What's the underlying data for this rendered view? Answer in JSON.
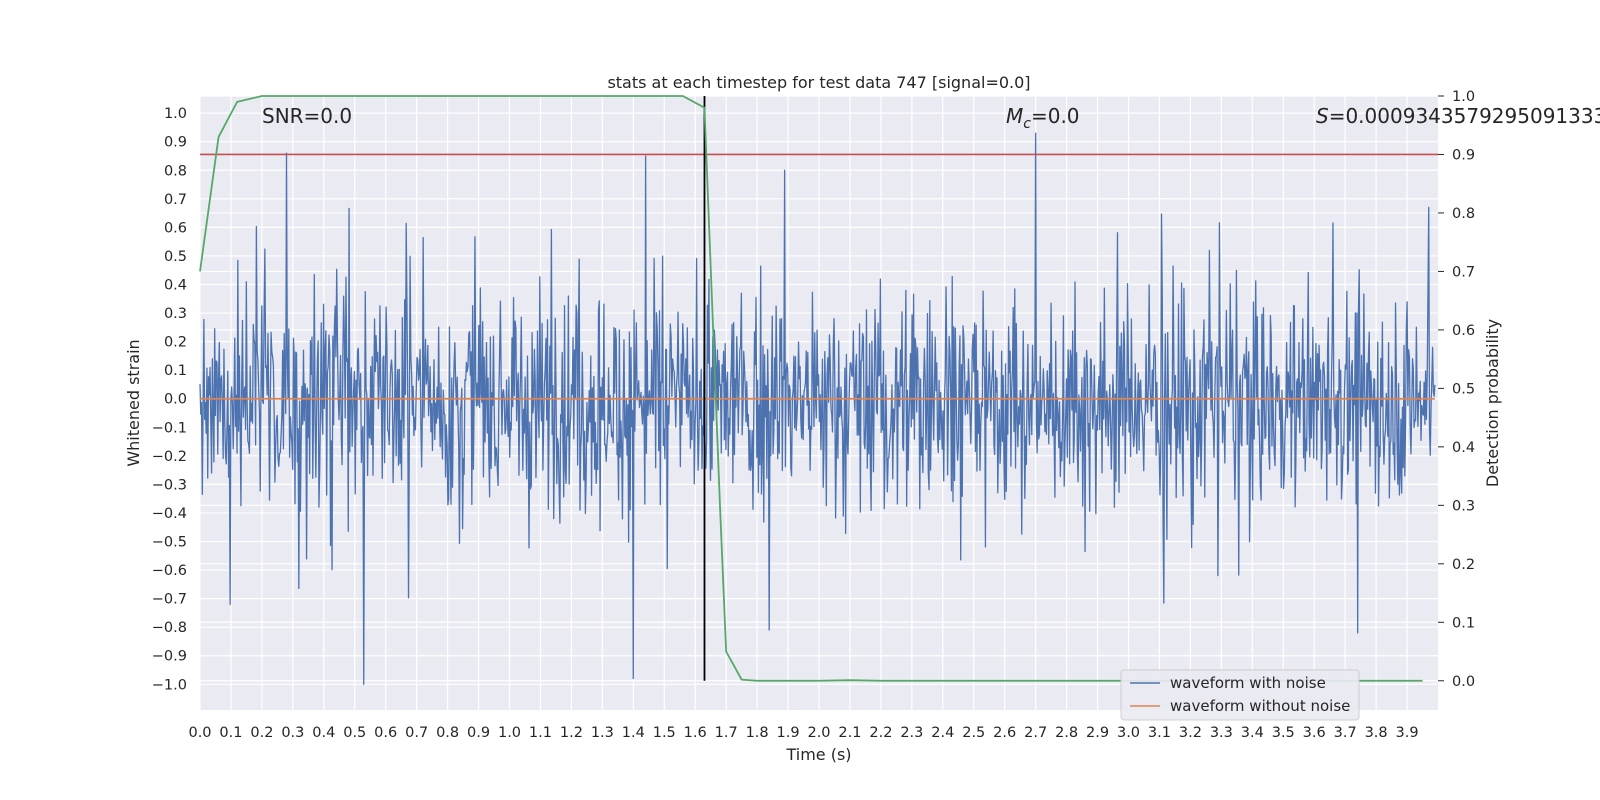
{
  "chart_data": {
    "type": "line",
    "title": "stats at each timestep for test data 747 [signal=0.0]",
    "xlabel": "Time (s)",
    "ylabel": "Whitened strain",
    "y2label": "Detection probability",
    "xlim": [
      0.0,
      4.0
    ],
    "ylim": [
      -1.09,
      1.06
    ],
    "y2lim": [
      -0.05,
      1.0
    ],
    "xticks": [
      "0.0",
      "0.1",
      "0.2",
      "0.3",
      "0.4",
      "0.5",
      "0.6",
      "0.7",
      "0.8",
      "0.9",
      "1.0",
      "1.1",
      "1.2",
      "1.3",
      "1.4",
      "1.5",
      "1.6",
      "1.7",
      "1.8",
      "1.9",
      "2.0",
      "2.1",
      "2.2",
      "2.3",
      "2.4",
      "2.5",
      "2.6",
      "2.7",
      "2.8",
      "2.9",
      "3.0",
      "3.1",
      "3.2",
      "3.3",
      "3.4",
      "3.5",
      "3.6",
      "3.7",
      "3.8",
      "3.9"
    ],
    "yticks": [
      "1.0",
      "0.9",
      "0.8",
      "0.7",
      "0.6",
      "0.5",
      "0.4",
      "0.3",
      "0.2",
      "0.1",
      "0.0",
      "−0.1",
      "−0.2",
      "−0.3",
      "−0.4",
      "−0.5",
      "−0.6",
      "−0.7",
      "−0.8",
      "−0.9",
      "−1.0"
    ],
    "y2ticks": [
      "1.0",
      "0.9",
      "0.8",
      "0.7",
      "0.6",
      "0.5",
      "0.4",
      "0.3",
      "0.2",
      "0.1",
      "0.0"
    ],
    "annotations": {
      "snr": "SNR=0.0",
      "mc_symbol": "M",
      "mc_sub": "c",
      "mc_value": "=0.0",
      "s_symbol": "S",
      "s_value": "=0.0009343579295091333"
    },
    "threshold": 0.9,
    "detection_time": 1.63,
    "noise_series": {
      "name": "waveform with noise",
      "sample_count": 1600,
      "peaks": [
        {
          "t": 0.28,
          "v": 0.86
        },
        {
          "t": 0.53,
          "v": -1.0
        },
        {
          "t": 1.4,
          "v": -0.98
        },
        {
          "t": 1.44,
          "v": 0.85
        },
        {
          "t": 2.7,
          "v": 0.93
        },
        {
          "t": 1.89,
          "v": 0.8
        },
        {
          "t": 3.74,
          "v": -0.82
        },
        {
          "t": 1.84,
          "v": -0.81
        },
        {
          "t": 3.97,
          "v": 0.67
        }
      ]
    },
    "clean_series": {
      "name": "waveform without noise",
      "value": 0.0
    },
    "probability_series": {
      "name": "detection probability",
      "x": [
        0.0,
        0.06,
        0.12,
        0.2,
        0.3,
        0.5,
        1.0,
        1.4,
        1.56,
        1.63,
        1.68,
        1.7,
        1.75,
        1.8,
        2.0,
        2.1,
        2.2,
        2.5,
        3.0,
        3.5,
        3.95
      ],
      "y": [
        0.7,
        0.93,
        0.99,
        1.0,
        1.0,
        1.0,
        1.0,
        1.0,
        1.0,
        0.98,
        0.3,
        0.05,
        0.002,
        0.0,
        0.0,
        0.001,
        0.0,
        0.0,
        0.0,
        0.0,
        0.0
      ]
    },
    "legend": {
      "position": "lower-right",
      "entries": [
        {
          "label": "waveform with noise",
          "color": "#4c72b0"
        },
        {
          "label": "waveform without noise",
          "color": "#dd8452"
        }
      ]
    },
    "colors": {
      "noise": "#4c72b0",
      "clean": "#dd8452",
      "probability": "#55a868",
      "threshold": "#c44e52",
      "detection_line": "#000000",
      "background": "#eaeaf2",
      "grid": "#ffffff"
    }
  }
}
